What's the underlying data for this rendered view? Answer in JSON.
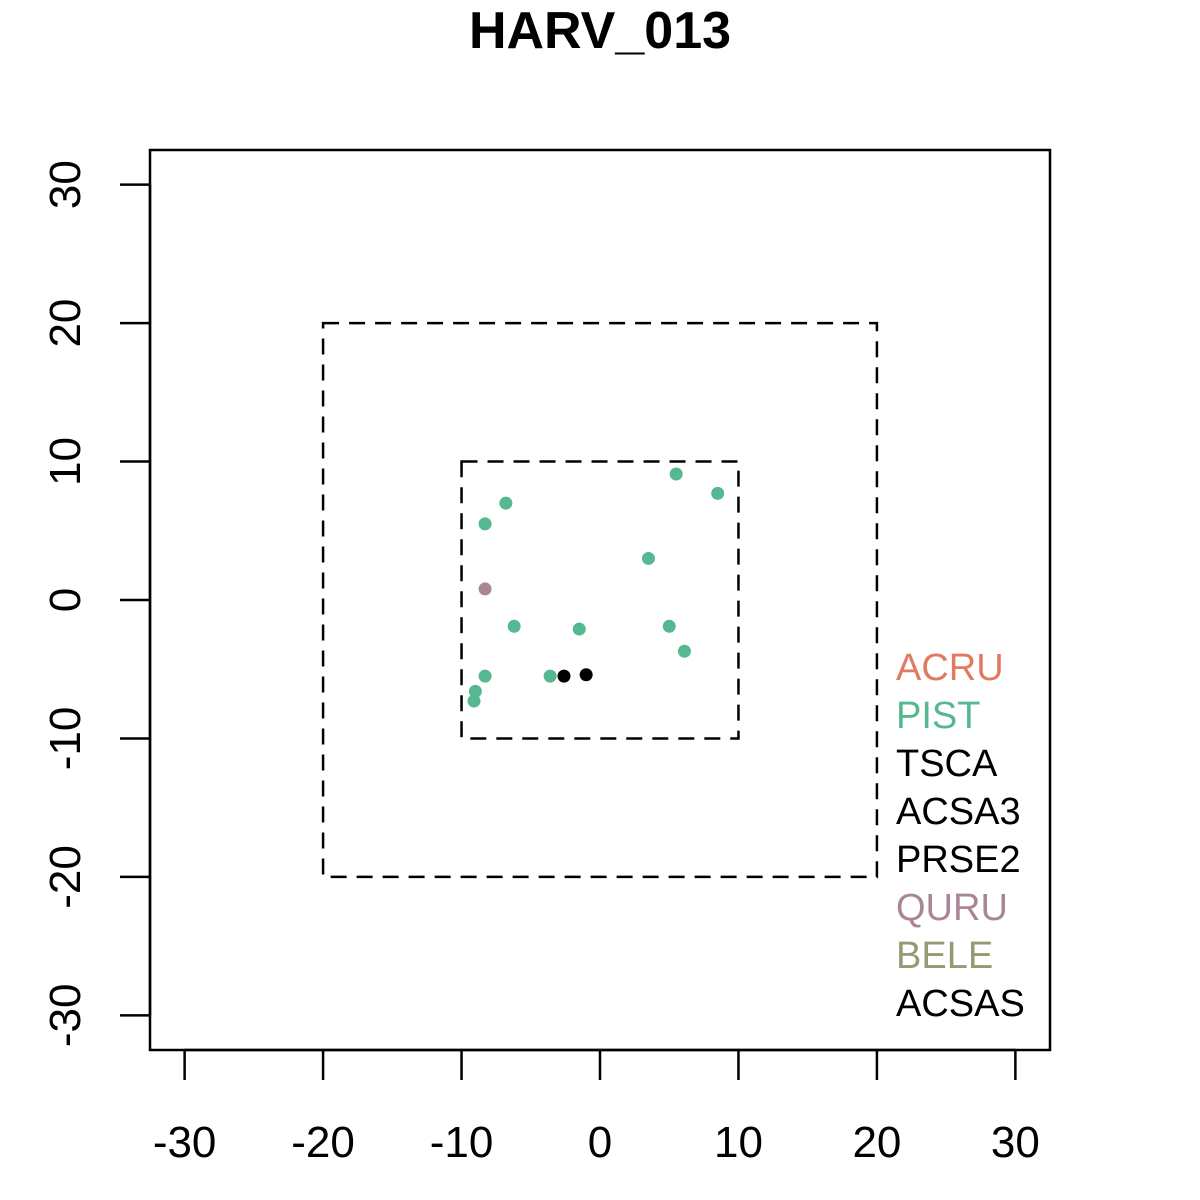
{
  "chart_data": {
    "type": "scatter",
    "title": "HARV_013",
    "xlabel": "",
    "ylabel": "",
    "xlim": [
      -32.5,
      32.5
    ],
    "ylim": [
      -32.5,
      32.5
    ],
    "x_ticks": [
      -30,
      -20,
      -10,
      0,
      10,
      20,
      30
    ],
    "y_ticks": [
      -30,
      -20,
      -10,
      0,
      10,
      20,
      30
    ],
    "x_tick_labels": [
      "-30",
      "-20",
      "-10",
      "0",
      "10",
      "20",
      "30"
    ],
    "y_tick_labels": [
      "-30",
      "-20",
      "-10",
      "0",
      "10",
      "20",
      "30"
    ],
    "grid": false,
    "legend_position": "bottom-right",
    "dashed_squares": [
      10,
      20
    ],
    "legend": [
      {
        "label": "ACRU",
        "color": "#E07B62"
      },
      {
        "label": "PIST",
        "color": "#55B891"
      },
      {
        "label": "TSCA",
        "color": "#000000"
      },
      {
        "label": "ACSA3",
        "color": "#000000"
      },
      {
        "label": "PRSE2",
        "color": "#000000"
      },
      {
        "label": "QURU",
        "color": "#A98595"
      },
      {
        "label": "BELE",
        "color": "#959A72"
      },
      {
        "label": "ACSAS",
        "color": "#000000"
      }
    ],
    "series": [
      {
        "species": "PIST",
        "color": "#55B891",
        "points": [
          [
            5.5,
            9.1
          ],
          [
            8.5,
            7.7
          ],
          [
            -6.8,
            7.0
          ],
          [
            -8.3,
            5.5
          ],
          [
            3.5,
            3.0
          ],
          [
            -6.2,
            -1.9
          ],
          [
            -1.5,
            -2.1
          ],
          [
            5.0,
            -1.9
          ],
          [
            6.1,
            -3.7
          ],
          [
            -8.3,
            -5.5
          ],
          [
            -3.6,
            -5.5
          ],
          [
            -9.0,
            -6.6
          ],
          [
            -9.1,
            -7.3
          ]
        ]
      },
      {
        "species": "QURU",
        "color": "#A98595",
        "points": [
          [
            -8.3,
            0.8
          ]
        ]
      },
      {
        "species": "TSCA",
        "color": "#000000",
        "points": [
          [
            -2.6,
            -5.5
          ],
          [
            -1.0,
            -5.4
          ]
        ]
      }
    ]
  }
}
